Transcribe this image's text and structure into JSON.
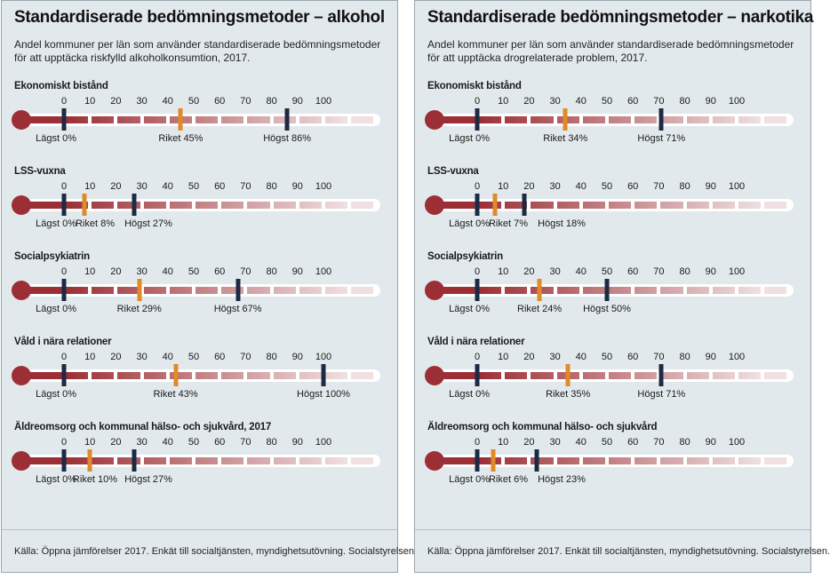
{
  "chart_data": [
    {
      "type": "bar",
      "title": "Standardiserade bedömningsmetoder – alkohol",
      "subtitle": "Andel kommuner per län som använder standardiserade bedömningsmetoder för att upptäcka riskfylld alkoholkonsumtion, 2017.",
      "xlim": [
        0,
        100
      ],
      "ticks": [
        "0",
        "10",
        "20",
        "30",
        "40",
        "50",
        "60",
        "70",
        "80",
        "90",
        "100"
      ],
      "colors": {
        "min": "#1c2a44",
        "max": "#1c2a44",
        "avg": "#e08a28",
        "bar": "#9b2f35"
      },
      "categories": [
        {
          "label": "Ekonomiskt bistånd",
          "min": 0,
          "avg": 45,
          "max": 86,
          "min_label": "Lägst 0%",
          "avg_label": "Riket 45%",
          "max_label": "Högst 86%"
        },
        {
          "label": "LSS-vuxna",
          "min": 0,
          "avg": 8,
          "max": 27,
          "min_label": "Lägst 0%",
          "avg_label": "Riket 8%",
          "max_label": "Högst 27%"
        },
        {
          "label": "Socialpsykiatrin",
          "min": 0,
          "avg": 29,
          "max": 67,
          "min_label": "Lägst 0%",
          "avg_label": "Riket 29%",
          "max_label": "Högst 67%"
        },
        {
          "label": "Våld i nära relationer",
          "min": 0,
          "avg": 43,
          "max": 100,
          "min_label": "Lägst 0%",
          "avg_label": "Riket 43%",
          "max_label": "Högst 100%"
        },
        {
          "label": "Äldreomsorg och kommunal hälso- och sjukvård, 2017",
          "min": 0,
          "avg": 10,
          "max": 27,
          "min_label": "Lägst 0%",
          "avg_label": "Riket 10%",
          "max_label": "Högst 27%"
        }
      ],
      "source": "Källa: Öppna jämförelser 2017. Enkät till socialtjänsten, myndighetsutövning. Socialstyrelsen."
    },
    {
      "type": "bar",
      "title": "Standardiserade bedömningsmetoder – narkotika",
      "subtitle": "Andel kommuner per län som använder standardiserade bedömningsmetoder för att upptäcka drogrelaterade problem, 2017.",
      "xlim": [
        0,
        100
      ],
      "ticks": [
        "0",
        "10",
        "20",
        "30",
        "40",
        "50",
        "60",
        "70",
        "80",
        "90",
        "100"
      ],
      "colors": {
        "min": "#1c2a44",
        "max": "#1c2a44",
        "avg": "#e08a28",
        "bar": "#9b2f35"
      },
      "categories": [
        {
          "label": "Ekonomiskt bistånd",
          "min": 0,
          "avg": 34,
          "max": 71,
          "min_label": "Lägst 0%",
          "avg_label": "Riket 34%",
          "max_label": "Högst 71%"
        },
        {
          "label": "LSS-vuxna",
          "min": 0,
          "avg": 7,
          "max": 18,
          "min_label": "Lägst 0%",
          "avg_label": "Riket 7%",
          "max_label": "Högst 18%"
        },
        {
          "label": "Socialpsykiatrin",
          "min": 0,
          "avg": 24,
          "max": 50,
          "min_label": "Lägst 0%",
          "avg_label": "Riket 24%",
          "max_label": "Högst 50%"
        },
        {
          "label": "Våld i nära relationer",
          "min": 0,
          "avg": 35,
          "max": 71,
          "min_label": "Lägst 0%",
          "avg_label": "Riket 35%",
          "max_label": "Högst 71%"
        },
        {
          "label": "Äldreomsorg och kommunal hälso- och sjukvård",
          "min": 0,
          "avg": 6,
          "max": 23,
          "min_label": "Lägst 0%",
          "avg_label": "Riket 6%",
          "max_label": "Högst 23%"
        }
      ],
      "source": "Källa: Öppna jämförelser 2017. Enkät till socialtjänsten, myndighetsutövning. Socialstyrelsen."
    }
  ]
}
